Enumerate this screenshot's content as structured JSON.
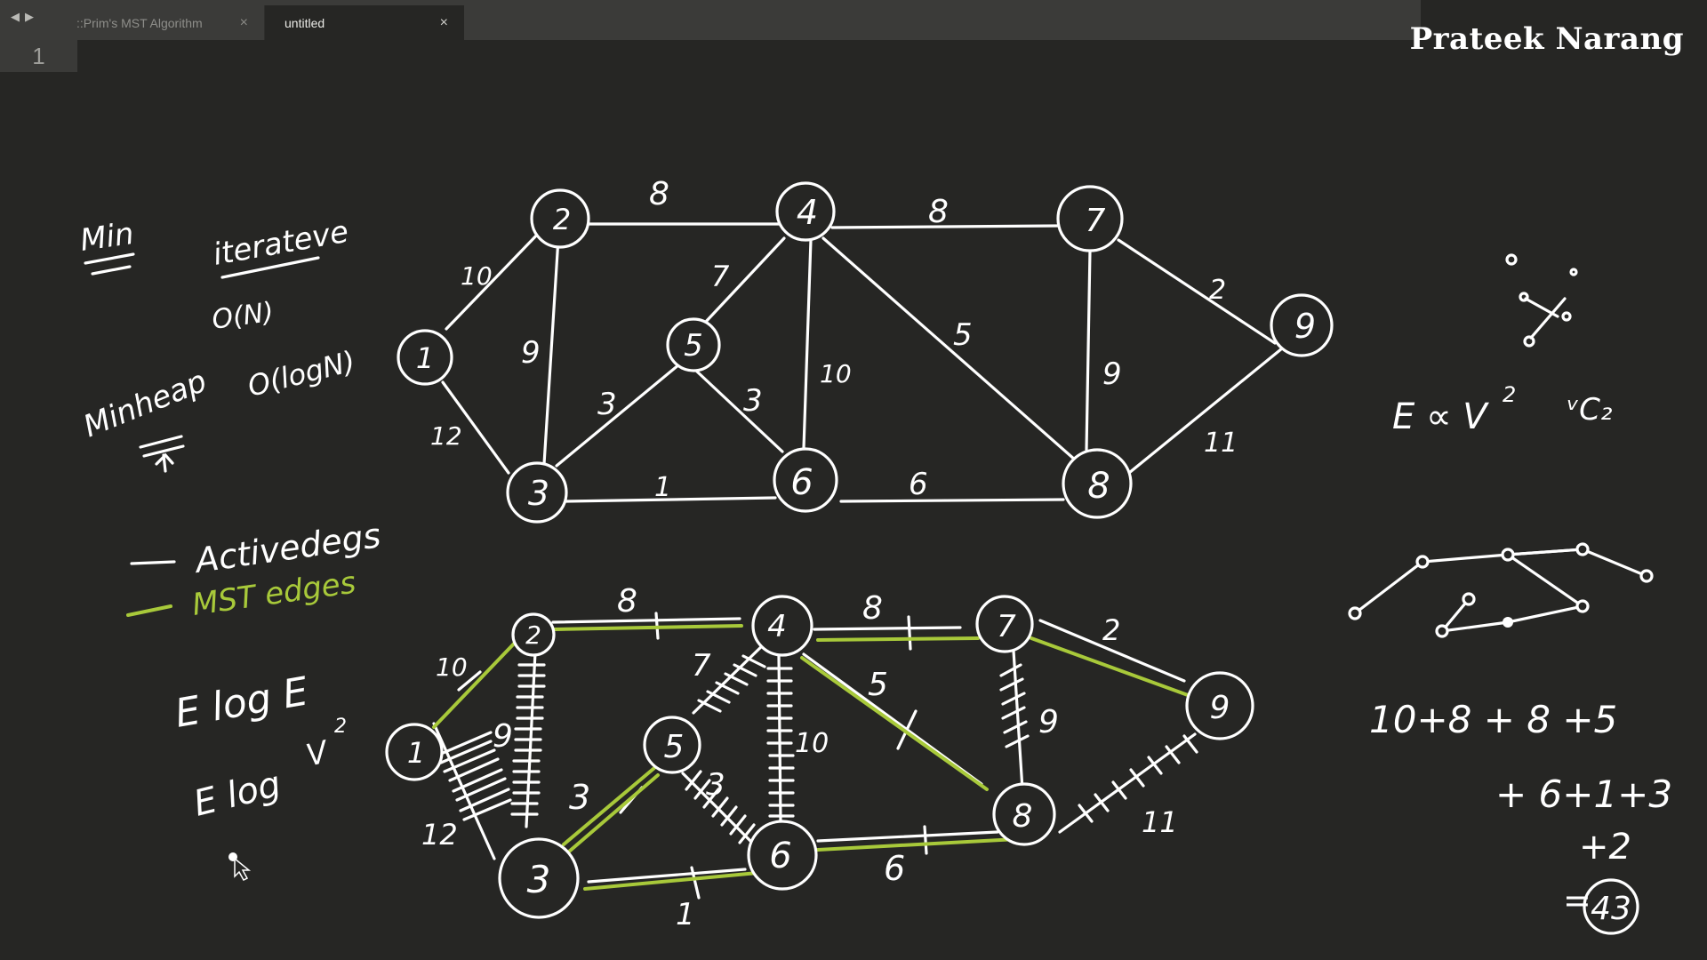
{
  "tabs": [
    {
      "label": "::Prim's MST Algorithm",
      "close": "×",
      "active": false
    },
    {
      "label": "untitled",
      "close": "×",
      "active": true
    }
  ],
  "nav": {
    "back": "◀",
    "forward": "▶"
  },
  "editor": {
    "line_number": "1"
  },
  "brand": "Prateek Narang",
  "notes": {
    "min": "Min",
    "iterative": "iterateve",
    "on": "O(N)",
    "minheap": "Minheap",
    "ologn": "O(logN)",
    "active_edges": "Activedegs",
    "mst_edges": "MST edges",
    "eloge": "E log E",
    "elogv": "E log",
    "elogv_v": "V",
    "elogv_exp": "2",
    "e_prop": "E ∝ V",
    "e_prop_exp": "2",
    "vc2": "ᵛC₂",
    "sum_line1": "10+8 + 8 +5",
    "sum_line2": "+ 6+1+3",
    "sum_line3": "+2",
    "sum_total_eq": "=",
    "sum_total": "43"
  },
  "top_graph": {
    "nodes": [
      "1",
      "2",
      "3",
      "4",
      "5",
      "6",
      "7",
      "8",
      "9"
    ],
    "edge_weights": {
      "e1_2": "10",
      "e1_3": "12",
      "e2_4": "8",
      "e2_3": "9",
      "e3_5": "3",
      "e3_6": "1",
      "e4_5": "7",
      "e5_6": "3",
      "e4_6": "10",
      "e4_7": "8",
      "e4_8": "5",
      "e6_8": "6",
      "e7_8": "9",
      "e7_9": "2",
      "e8_9": "11"
    }
  },
  "bottom_graph": {
    "nodes": [
      "1",
      "2",
      "3",
      "4",
      "5",
      "6",
      "7",
      "8",
      "9"
    ],
    "edge_weights": {
      "e1_2": "10",
      "e1_3": "12",
      "e2_4": "8",
      "e2_3": "9",
      "e3_5": "3",
      "e3_6": "1",
      "e4_5": "7",
      "e5_6": "3",
      "e4_6": "10",
      "e4_7": "8",
      "e4_8": "5",
      "e6_8": "6",
      "e7_8": "9",
      "e7_9": "2",
      "e8_9": "11"
    }
  },
  "colors": {
    "background": "#262624",
    "ink": "#ffffff",
    "mst": "#a8c93a"
  }
}
